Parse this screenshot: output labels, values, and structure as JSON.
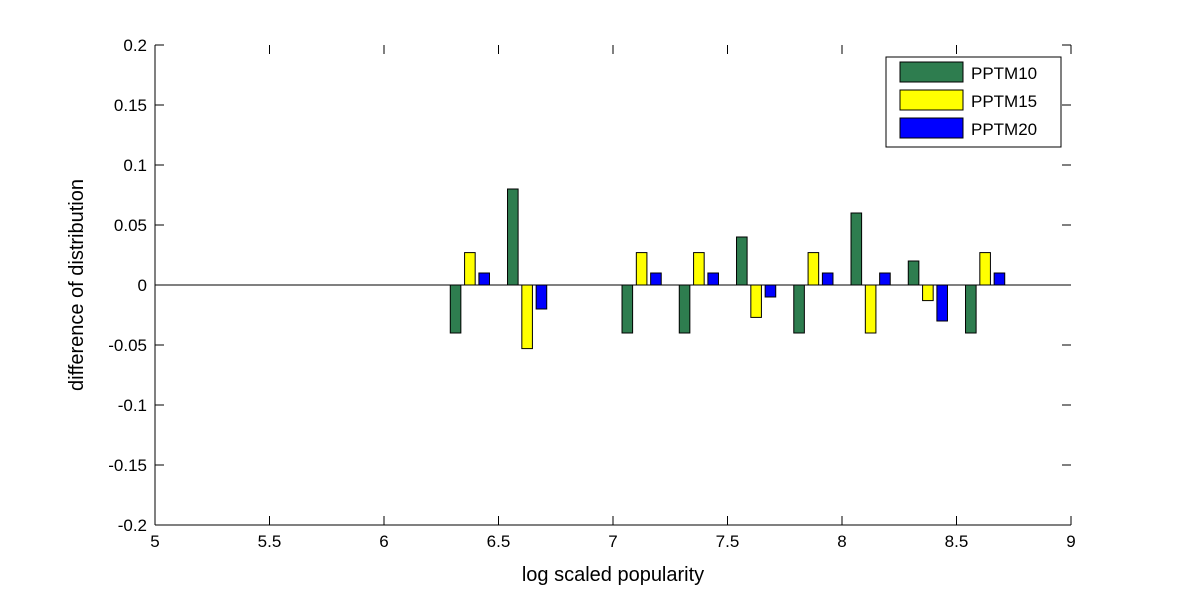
{
  "chart_data": {
    "type": "bar",
    "title": "",
    "xlabel": "log scaled popularity",
    "ylabel": "difference of distribution",
    "xlim": [
      5,
      9
    ],
    "ylim": [
      -0.2,
      0.2
    ],
    "x_ticks": [
      5,
      5.5,
      6,
      6.5,
      7,
      7.5,
      8,
      8.5,
      9
    ],
    "x_tick_labels": [
      "5",
      "5.5",
      "6",
      "6.5",
      "7",
      "7.5",
      "8",
      "8.5",
      "9"
    ],
    "y_ticks": [
      -0.2,
      -0.15,
      -0.1,
      -0.05,
      0,
      0.05,
      0.1,
      0.15,
      0.2
    ],
    "y_tick_labels": [
      "-0.2",
      "-0.15",
      "-0.1",
      "-0.05",
      "0",
      "0.05",
      "0.1",
      "0.15",
      "0.2"
    ],
    "x": [
      6.375,
      6.625,
      7.125,
      7.375,
      7.625,
      7.875,
      8.125,
      8.375,
      8.625
    ],
    "series": [
      {
        "name": "PPTM10",
        "color": "#2e7d4f",
        "values": [
          -0.04,
          0.08,
          -0.04,
          -0.04,
          0.04,
          -0.04,
          0.06,
          0.02,
          -0.04
        ]
      },
      {
        "name": "PPTM15",
        "color": "#ffff00",
        "values": [
          0.027,
          -0.053,
          0.027,
          0.027,
          -0.027,
          0.027,
          -0.04,
          -0.013,
          0.027
        ]
      },
      {
        "name": "PPTM20",
        "color": "#0000ff",
        "values": [
          0.01,
          -0.02,
          0.01,
          0.01,
          -0.01,
          0.01,
          0.01,
          -0.03,
          0.01
        ]
      }
    ],
    "grid": false,
    "legend_position": "top-right"
  }
}
